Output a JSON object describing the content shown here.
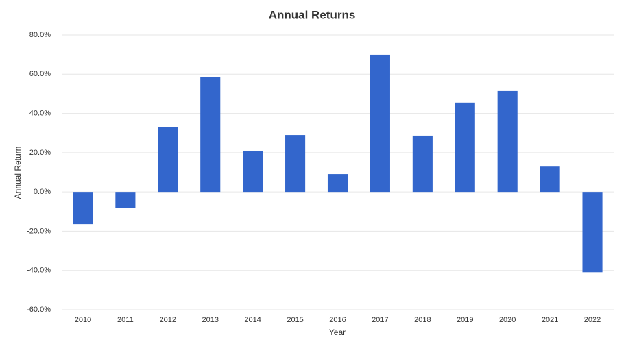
{
  "chart_data": {
    "type": "bar",
    "title": "Annual Returns",
    "x_label": "Year",
    "y_label": "Annual Return",
    "categories": [
      "2010",
      "2011",
      "2012",
      "2013",
      "2014",
      "2015",
      "2016",
      "2017",
      "2018",
      "2019",
      "2020",
      "2021",
      "2022"
    ],
    "values": [
      -16.4,
      -8.0,
      32.9,
      58.7,
      21.0,
      29.0,
      9.1,
      69.9,
      28.7,
      45.5,
      51.4,
      12.9,
      -40.9
    ],
    "color": "#3366cc",
    "ylim": [
      -60,
      80
    ],
    "yticks": [
      {
        "value": -60,
        "label": "-60.0%"
      },
      {
        "value": -40,
        "label": "-40.0%"
      },
      {
        "value": -20,
        "label": "-20.0%"
      },
      {
        "value": 0,
        "label": "0.0%"
      },
      {
        "value": 20,
        "label": "20.0%"
      },
      {
        "value": 40,
        "label": "40.0%"
      },
      {
        "value": 60,
        "label": "60.0%"
      },
      {
        "value": 80,
        "label": "80.0%"
      }
    ],
    "grid": true
  }
}
